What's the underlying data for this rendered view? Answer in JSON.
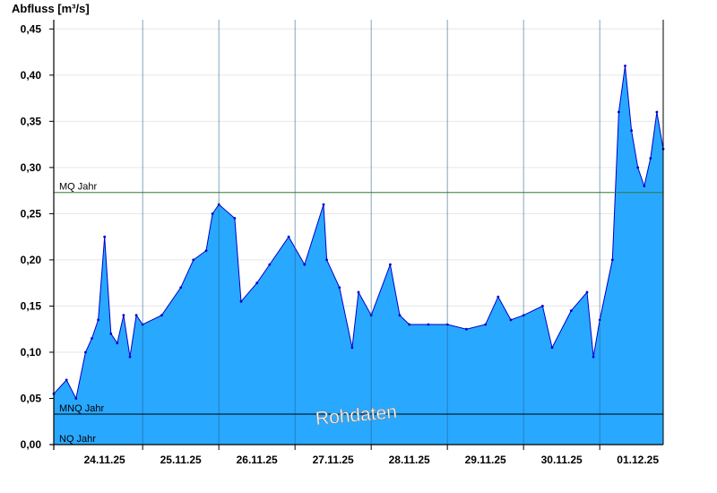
{
  "chart_data": {
    "type": "area",
    "ylabel": "Abfluss [m³/s]",
    "ylim": [
      0,
      0.46
    ],
    "y_ticks": [
      "0,00",
      "0,05",
      "0,10",
      "0,15",
      "0,20",
      "0,25",
      "0,30",
      "0,35",
      "0,40",
      "0,45"
    ],
    "y_tick_values": [
      0,
      0.05,
      0.1,
      0.15,
      0.2,
      0.25,
      0.3,
      0.35,
      0.4,
      0.45
    ],
    "x_unit": "days",
    "x_range": [
      "2025-11-23T20:00",
      "2025-12-01T20:00"
    ],
    "x_ticks": [
      "24.11.25",
      "25.11.25",
      "26.11.25",
      "27.11.25",
      "28.11.25",
      "29.11.25",
      "30.11.25",
      "01.12.25"
    ],
    "grid": "horizontal",
    "reference_lines": [
      {
        "label": "MQ Jahr",
        "value": 0.273,
        "color": "#2e7d32"
      },
      {
        "label": "MNQ Jahr",
        "value": 0.033,
        "color": "#000000"
      },
      {
        "label": "NQ Jahr",
        "value": 0.0,
        "color": "#000000"
      }
    ],
    "watermark": "Rohdaten",
    "fill_color": "#29a8ff",
    "line_color": "#0000cc",
    "series": [
      {
        "points": [
          [
            "2025-11-23T20:00",
            0.055
          ],
          [
            "2025-11-24T00:00",
            0.07
          ],
          [
            "2025-11-24T03:00",
            0.05
          ],
          [
            "2025-11-24T06:00",
            0.1
          ],
          [
            "2025-11-24T08:00",
            0.115
          ],
          [
            "2025-11-24T10:00",
            0.135
          ],
          [
            "2025-11-24T12:00",
            0.225
          ],
          [
            "2025-11-24T14:00",
            0.12
          ],
          [
            "2025-11-24T16:00",
            0.11
          ],
          [
            "2025-11-24T18:00",
            0.14
          ],
          [
            "2025-11-24T20:00",
            0.095
          ],
          [
            "2025-11-24T22:00",
            0.14
          ],
          [
            "2025-11-25T00:00",
            0.13
          ],
          [
            "2025-11-25T06:00",
            0.14
          ],
          [
            "2025-11-25T12:00",
            0.17
          ],
          [
            "2025-11-25T16:00",
            0.2
          ],
          [
            "2025-11-25T20:00",
            0.21
          ],
          [
            "2025-11-25T22:00",
            0.25
          ],
          [
            "2025-11-26T00:00",
            0.26
          ],
          [
            "2025-11-26T05:00",
            0.245
          ],
          [
            "2025-11-26T07:00",
            0.155
          ],
          [
            "2025-11-26T12:00",
            0.175
          ],
          [
            "2025-11-26T16:00",
            0.195
          ],
          [
            "2025-11-26T22:00",
            0.225
          ],
          [
            "2025-11-27T03:00",
            0.195
          ],
          [
            "2025-11-27T09:00",
            0.26
          ],
          [
            "2025-11-27T10:00",
            0.2
          ],
          [
            "2025-11-27T14:00",
            0.17
          ],
          [
            "2025-11-27T18:00",
            0.105
          ],
          [
            "2025-11-27T20:00",
            0.165
          ],
          [
            "2025-11-28T00:00",
            0.14
          ],
          [
            "2025-11-28T06:00",
            0.195
          ],
          [
            "2025-11-28T09:00",
            0.14
          ],
          [
            "2025-11-28T12:00",
            0.13
          ],
          [
            "2025-11-28T18:00",
            0.13
          ],
          [
            "2025-11-29T00:00",
            0.13
          ],
          [
            "2025-11-29T06:00",
            0.125
          ],
          [
            "2025-11-29T12:00",
            0.13
          ],
          [
            "2025-11-29T16:00",
            0.16
          ],
          [
            "2025-11-29T20:00",
            0.135
          ],
          [
            "2025-11-30T00:00",
            0.14
          ],
          [
            "2025-11-30T06:00",
            0.15
          ],
          [
            "2025-11-30T09:00",
            0.105
          ],
          [
            "2025-11-30T15:00",
            0.145
          ],
          [
            "2025-11-30T20:00",
            0.165
          ],
          [
            "2025-11-30T22:00",
            0.095
          ],
          [
            "2025-12-01T00:00",
            0.135
          ],
          [
            "2025-12-01T04:00",
            0.2
          ],
          [
            "2025-12-01T06:00",
            0.36
          ],
          [
            "2025-12-01T08:00",
            0.41
          ],
          [
            "2025-12-01T10:00",
            0.34
          ],
          [
            "2025-12-01T12:00",
            0.3
          ],
          [
            "2025-12-01T14:00",
            0.28
          ],
          [
            "2025-12-01T16:00",
            0.31
          ],
          [
            "2025-12-01T18:00",
            0.36
          ],
          [
            "2025-12-01T20:00",
            0.32
          ]
        ]
      }
    ]
  }
}
